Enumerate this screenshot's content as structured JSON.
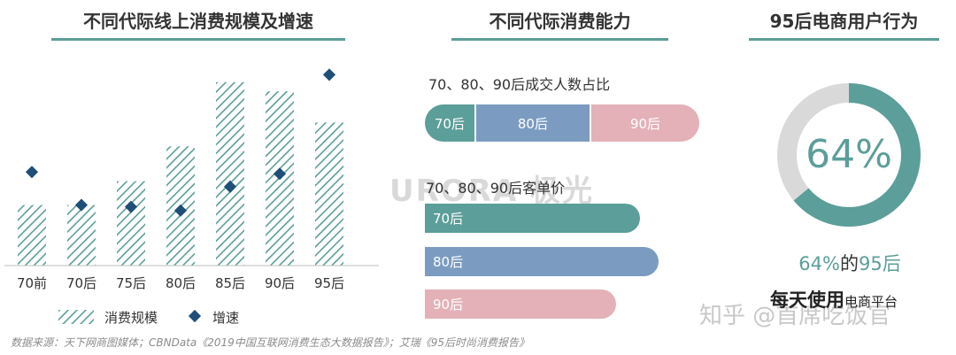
{
  "panels": {
    "left_title": "不同代际线上消费规模及增速",
    "middle_title": "不同代际消费能力",
    "right_title": "95后电商用户行为"
  },
  "chart_data": [
    {
      "type": "bar",
      "title": "不同代际线上消费规模及增速",
      "categories": [
        "70前",
        "70后",
        "75后",
        "80后",
        "85后",
        "90后",
        "95后"
      ],
      "series": [
        {
          "name": "消费规模",
          "kind": "bar",
          "values": [
            33,
            33,
            46,
            65,
            100,
            95,
            78
          ]
        },
        {
          "name": "增速",
          "kind": "scatter",
          "values": [
            51,
            33,
            32,
            30,
            43,
            50,
            104
          ]
        }
      ],
      "ylim": [
        0,
        110
      ],
      "legend": "bottom-left",
      "grid": false,
      "colors": {
        "bar": "#5c9e99",
        "marker": "#1f4e79"
      }
    },
    {
      "type": "bar",
      "title": "70、80、90后成交人数占比",
      "orientation": "stacked-horizontal",
      "categories": [
        "70后",
        "80后",
        "90后"
      ],
      "values": [
        18,
        42,
        40
      ],
      "colors": [
        "#5c9e99",
        "#7b9cc0",
        "#e4b1b8"
      ]
    },
    {
      "type": "bar",
      "title": "70、80、90后客单价",
      "orientation": "horizontal",
      "categories": [
        "70后",
        "80后",
        "90后"
      ],
      "values": [
        81,
        88,
        72
      ],
      "xlim": [
        0,
        100
      ],
      "colors": [
        "#5c9e99",
        "#7b9cc0",
        "#e4b1b8"
      ]
    },
    {
      "type": "pie",
      "style": "donut",
      "values": [
        64,
        36
      ],
      "center_label": "64%",
      "colors": [
        "#5c9e99",
        "#d9d9d9"
      ]
    }
  ],
  "texts": {
    "share_subtitle": "70、80、90后成交人数占比",
    "price_subtitle": "70、80、90后客单价",
    "donut_value_pct": "64%",
    "donut_value_suffix": "的",
    "donut_value_gen": "95后",
    "donut_caption_big": "每天使用",
    "donut_caption_small": "电商平台",
    "source": "数据来源：天下网商图媒体；CBNData《2019中国互联网消费生态大数据报告》；艾瑞《95后时尚消费报告》",
    "watermark": "URORA 极光",
    "zhihu_mark": "知乎 @首席吃饭官"
  },
  "colors": {
    "teal": "#5c9e99",
    "blue": "#7b9cc0",
    "pink": "#e4b1b8",
    "navy": "#1f4e79",
    "gray_ring": "#d9d9d9"
  }
}
